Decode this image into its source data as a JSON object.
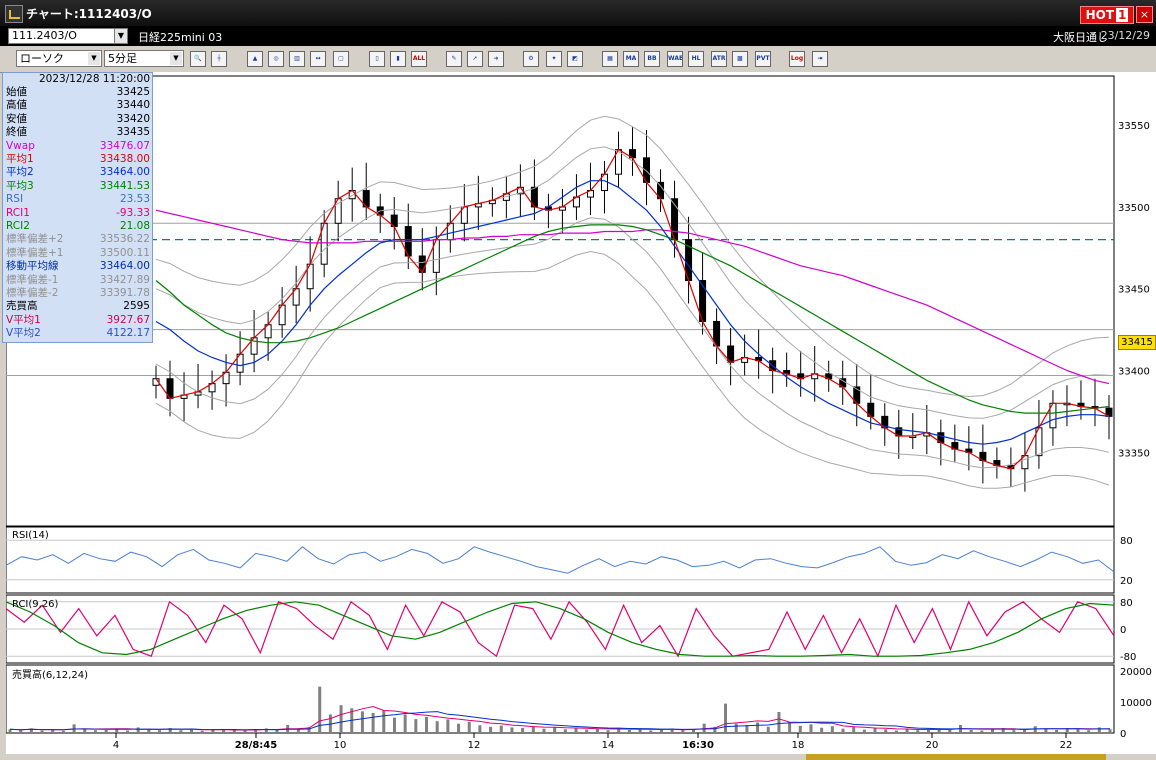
{
  "window": {
    "title": "チャート:1112403/O",
    "hot_label": "HOT",
    "hot_num": "1",
    "close": "×"
  },
  "symbolbar": {
    "symbol": "111.2403/O",
    "instrument": "日経225mini 03",
    "market": "大阪日通し",
    "date": "23/12/29"
  },
  "toolbar": {
    "chart_type": "ローソク",
    "interval": "5分足",
    "buttons": [
      "zoom",
      "cross",
      "grid1",
      "grid2",
      "grid3",
      "grid4",
      "grid5",
      "grid6",
      "bar1",
      "bar2",
      "ALL",
      "draw1",
      "draw2",
      "draw3",
      "tool1",
      "tool2",
      "color",
      "MA",
      "BB",
      "WAE",
      "HL",
      "ATR",
      "BB2",
      "PVT",
      "Log",
      "exit"
    ],
    "labels": {
      "all": "ALL",
      "ma": "MA",
      "bb": "BB",
      "wae": "WAE",
      "hl": "HL",
      "atr": "ATR",
      "pvt": "PVT",
      "log": "Log"
    }
  },
  "info": {
    "timestamp": "2023/12/28  11:20:00",
    "rows": [
      {
        "k": "始値",
        "v": "33425",
        "c": "#000000"
      },
      {
        "k": "高値",
        "v": "33440",
        "c": "#000000"
      },
      {
        "k": "安値",
        "v": "33420",
        "c": "#000000"
      },
      {
        "k": "終値",
        "v": "33435",
        "c": "#000000"
      },
      {
        "k": "Vwap",
        "v": "33476.07",
        "c": "#d000d0"
      },
      {
        "k": "平均1",
        "v": "33438.00",
        "c": "#e00000"
      },
      {
        "k": "平均2",
        "v": "33464.00",
        "c": "#0030d0"
      },
      {
        "k": "平均3",
        "v": "33441.53",
        "c": "#008000"
      },
      {
        "k": "RSI",
        "v": "23.53",
        "c": "#3a70c0"
      },
      {
        "k": "RCI1",
        "v": "-93.33",
        "c": "#e00070"
      },
      {
        "k": "RCI2",
        "v": "21.08",
        "c": "#008000"
      },
      {
        "k": "標準偏差+2",
        "v": "33536.22",
        "c": "#909090"
      },
      {
        "k": "標準偏差+1",
        "v": "33500.11",
        "c": "#909090"
      },
      {
        "k": "移動平均線",
        "v": "33464.00",
        "c": "#0030a0"
      },
      {
        "k": "標準偏差-1",
        "v": "33427.89",
        "c": "#909090"
      },
      {
        "k": "標準偏差-2",
        "v": "33391.78",
        "c": "#909090"
      },
      {
        "k": "売買高",
        "v": "2595",
        "c": "#000000"
      },
      {
        "k": "V平均1",
        "v": "3927.67",
        "c": "#d00050"
      },
      {
        "k": "V平均2",
        "v": "4122.17",
        "c": "#3050c0"
      }
    ]
  },
  "price_tag": "33415",
  "colors": {
    "vwap": "#d000d0",
    "ma1": "#e00000",
    "ma2": "#0030d0",
    "ma3": "#008000",
    "bands": "#a8a8a8",
    "rsi": "#4a80d0",
    "rci1": "#e00070",
    "rci2": "#008000",
    "dashed": "#008080"
  },
  "chart_data": [
    {
      "type": "line",
      "name": "price",
      "yticks": [
        33550,
        33500,
        33450,
        33400,
        33350
      ],
      "ylim": [
        33305,
        33580
      ],
      "hlines": [
        33490,
        33425,
        33397
      ],
      "dashed_line": 33480,
      "x_labels": [
        "4",
        "28/8:45",
        "10",
        "12",
        "14",
        "16:30",
        "18",
        "20",
        "22"
      ],
      "close": [
        33395,
        33383,
        33385,
        33387,
        33392,
        33399,
        33410,
        33420,
        33428,
        33440,
        33450,
        33465,
        33490,
        33505,
        33510,
        33500,
        33495,
        33488,
        33470,
        33460,
        33480,
        33490,
        33500,
        33502,
        33504,
        33508,
        33512,
        33500,
        33498,
        33500,
        33506,
        33510,
        33520,
        33535,
        33530,
        33515,
        33505,
        33480,
        33455,
        33430,
        33415,
        33405,
        33408,
        33406,
        33400,
        33398,
        33395,
        33398,
        33395,
        33390,
        33380,
        33372,
        33365,
        33360,
        33360,
        33362,
        33356,
        33352,
        33350,
        33345,
        33342,
        33340,
        33348,
        33365,
        33380,
        33380,
        33378,
        33377,
        33372
      ],
      "vwap": [
        33498,
        33496,
        33494,
        33492,
        33490,
        33488,
        33486,
        33484,
        33482,
        33480,
        33479,
        33478,
        33478,
        33478,
        33478,
        33479,
        33479,
        33479,
        33479,
        33479,
        33480,
        33480,
        33481,
        33481,
        33482,
        33482,
        33483,
        33483,
        33483,
        33484,
        33484,
        33484,
        33485,
        33485,
        33485,
        33486,
        33486,
        33485,
        33484,
        33482,
        33480,
        33478,
        33476,
        33473,
        33470,
        33467,
        33464,
        33462,
        33460,
        33458,
        33455,
        33452,
        33449,
        33446,
        33443,
        33440,
        33436,
        33432,
        33428,
        33424,
        33420,
        33416,
        33412,
        33408,
        33404,
        33400,
        33397,
        33394,
        33392
      ],
      "ma2": [
        33430,
        33425,
        33418,
        33412,
        33408,
        33405,
        33403,
        33405,
        33410,
        33418,
        33428,
        33440,
        33450,
        33458,
        33465,
        33472,
        33478,
        33480,
        33480,
        33480,
        33482,
        33484,
        33486,
        33488,
        33490,
        33492,
        33494,
        33496,
        33500,
        33506,
        33512,
        33516,
        33516,
        33512,
        33505,
        33498,
        33488,
        33476,
        33464,
        33452,
        33440,
        33428,
        33418,
        33410,
        33403,
        33396,
        33390,
        33385,
        33380,
        33376,
        33372,
        33368,
        33366,
        33364,
        33363,
        33362,
        33360,
        33358,
        33356,
        33355,
        33356,
        33358,
        33362,
        33366,
        33370,
        33372,
        33373,
        33373,
        33372
      ],
      "ma3": [
        33455,
        33448,
        33440,
        33434,
        33428,
        33423,
        33420,
        33418,
        33417,
        33417,
        33418,
        33420,
        33423,
        33426,
        33430,
        33434,
        33438,
        33442,
        33446,
        33450,
        33454,
        33458,
        33462,
        33466,
        33470,
        33474,
        33478,
        33482,
        33485,
        33487,
        33488,
        33489,
        33489,
        33489,
        33488,
        33486,
        33483,
        33480,
        33476,
        33472,
        33468,
        33464,
        33459,
        33454,
        33449,
        33444,
        33439,
        33434,
        33429,
        33424,
        33419,
        33414,
        33409,
        33404,
        33399,
        33394,
        33390,
        33386,
        33382,
        33379,
        33377,
        33375,
        33374,
        33374,
        33374,
        33375,
        33376,
        33377,
        33378
      ]
    },
    {
      "type": "line",
      "name": "RSI(14)",
      "label": "RSI(14)",
      "yticks": [
        80,
        20
      ],
      "ylim": [
        0,
        100
      ],
      "values": [
        42,
        55,
        50,
        58,
        45,
        60,
        52,
        48,
        62,
        55,
        40,
        58,
        66,
        50,
        45,
        38,
        60,
        55,
        48,
        70,
        52,
        44,
        58,
        62,
        48,
        55,
        66,
        60,
        45,
        52,
        70,
        62,
        55,
        48,
        40,
        35,
        30,
        42,
        52,
        40,
        48,
        44,
        55,
        50,
        40,
        42,
        48,
        38,
        50,
        52,
        45,
        40,
        38,
        46,
        55,
        60,
        70,
        48,
        42,
        46,
        58,
        52,
        64,
        55,
        48,
        40,
        50,
        62,
        55,
        45,
        50,
        32
      ]
    },
    {
      "type": "line",
      "name": "RCI(9,26)",
      "label": "RCI(9,26)",
      "yticks": [
        80,
        0,
        -80
      ],
      "ylim": [
        -100,
        100
      ],
      "rci1": [
        60,
        20,
        70,
        -10,
        60,
        -20,
        40,
        -60,
        -80,
        80,
        40,
        -40,
        70,
        30,
        -70,
        80,
        60,
        10,
        -30,
        80,
        40,
        -60,
        70,
        -20,
        80,
        50,
        -40,
        -80,
        70,
        60,
        -30,
        80,
        20,
        -60,
        70,
        -40,
        10,
        -80,
        60,
        -20,
        -80,
        -70,
        -60,
        50,
        -60,
        40,
        -70,
        30,
        -80,
        70,
        -40,
        60,
        -60,
        80,
        -20,
        50,
        80,
        30,
        -10,
        80,
        60,
        -20
      ],
      "rci2": [
        80,
        50,
        10,
        -40,
        -70,
        -75,
        -60,
        -30,
        0,
        30,
        55,
        70,
        80,
        70,
        40,
        10,
        -20,
        -30,
        -10,
        20,
        50,
        75,
        80,
        60,
        30,
        -10,
        -40,
        -60,
        -75,
        -80,
        -80,
        -78,
        -80,
        -80,
        -78,
        -75,
        -80,
        -80,
        -78,
        -70,
        -60,
        -40,
        -10,
        30,
        60,
        75,
        70
      ]
    },
    {
      "type": "bar",
      "name": "売買高(6,12,24)",
      "label": "売買高(6,12,24)",
      "yticks": [
        20000,
        10000,
        0
      ],
      "ylim": [
        0,
        22000
      ],
      "values": [
        1200,
        900,
        1500,
        800,
        1100,
        700,
        2800,
        1400,
        900,
        1000,
        1300,
        800,
        1800,
        1200,
        900,
        1600,
        900,
        1100,
        700,
        1000,
        1300,
        900,
        800,
        1200,
        1500,
        1100,
        2600,
        1400,
        1900,
        15000,
        6000,
        9000,
        8000,
        7000,
        6500,
        7200,
        5000,
        6000,
        4500,
        5200,
        3800,
        4400,
        3000,
        3600,
        2500,
        2000,
        2400,
        1800,
        1600,
        2200,
        1400,
        1900,
        1200,
        1500,
        1100,
        1300,
        900,
        1700,
        1000,
        1200,
        800,
        1100,
        1400,
        900,
        1300,
        3000,
        2000,
        9500,
        3000,
        2600,
        3400,
        2000,
        6800,
        3400,
        2300,
        2800,
        1700,
        2200,
        1400,
        1900,
        1100,
        1500,
        1200,
        800,
        1300,
        900,
        1100,
        1500,
        1200,
        2600,
        1000,
        800,
        1200,
        1600,
        900,
        1100,
        2200,
        1300,
        1000,
        1600,
        1400,
        900,
        1800,
        1200
      ]
    }
  ]
}
